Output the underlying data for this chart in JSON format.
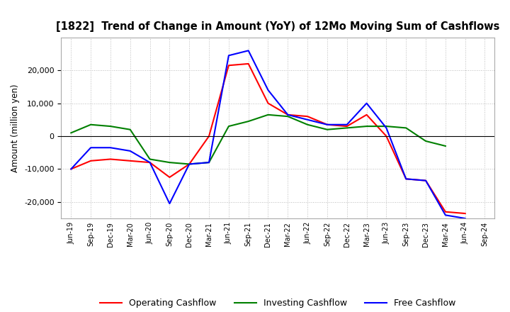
{
  "title": "[1822]  Trend of Change in Amount (YoY) of 12Mo Moving Sum of Cashflows",
  "ylabel": "Amount (million yen)",
  "x_labels": [
    "Jun-19",
    "Sep-19",
    "Dec-19",
    "Mar-20",
    "Jun-20",
    "Sep-20",
    "Dec-20",
    "Mar-21",
    "Jun-21",
    "Sep-21",
    "Dec-21",
    "Mar-22",
    "Jun-22",
    "Sep-22",
    "Dec-22",
    "Mar-23",
    "Jun-23",
    "Sep-23",
    "Dec-23",
    "Mar-24",
    "Jun-24",
    "Sep-24"
  ],
  "operating": [
    -10000,
    -7500,
    -7000,
    -7500,
    -8000,
    -12500,
    -8500,
    0,
    21500,
    22000,
    10000,
    6500,
    6000,
    3500,
    3000,
    6500,
    0,
    -13000,
    -13500,
    -23000,
    -23500,
    null
  ],
  "investing": [
    1000,
    3500,
    3000,
    2000,
    -7000,
    -8000,
    -8500,
    -8000,
    3000,
    4500,
    6500,
    6000,
    3500,
    2000,
    2500,
    3000,
    3000,
    2500,
    -1500,
    -3000,
    null,
    null
  ],
  "free": [
    -10000,
    -3500,
    -3500,
    -4500,
    -8000,
    -20500,
    -8500,
    -8000,
    24500,
    26000,
    14000,
    6500,
    5000,
    3500,
    3500,
    10000,
    2500,
    -13000,
    -13500,
    -24000,
    -25000,
    null
  ],
  "operating_color": "#ff0000",
  "investing_color": "#008000",
  "free_color": "#0000ff",
  "ylim": [
    -25000,
    30000
  ],
  "yticks": [
    -20000,
    -10000,
    0,
    10000,
    20000
  ],
  "background_color": "#ffffff",
  "grid_color": "#aaaaaa",
  "legend_labels": [
    "Operating Cashflow",
    "Investing Cashflow",
    "Free Cashflow"
  ]
}
